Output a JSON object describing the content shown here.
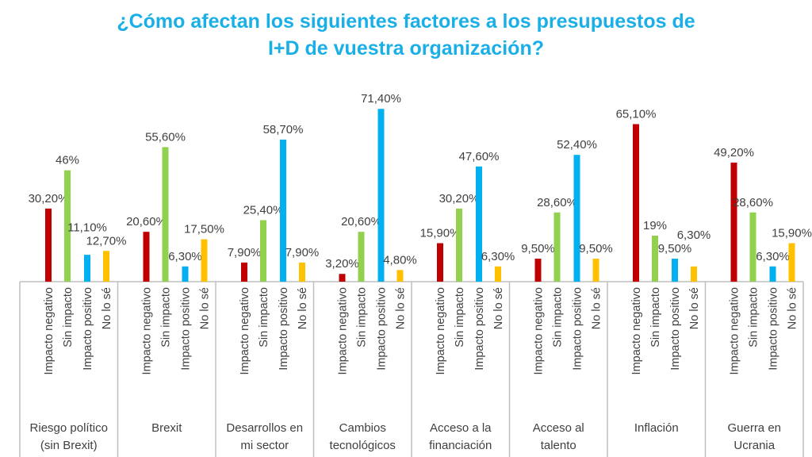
{
  "title": {
    "line1": "¿Cómo afectan los siguientes factores a los presupuestos de",
    "line2": "I+D de vuestra organización?"
  },
  "chart_data": {
    "type": "bar",
    "title": "¿Cómo afectan los siguientes factores a los presupuestos de I+D de vuestra organización?",
    "groups": [
      {
        "name": [
          "Riesgo político",
          "(sin Brexit)"
        ],
        "labels": [
          "30,20%",
          "46%",
          "11,10%",
          "12,70%"
        ],
        "values": [
          30.2,
          46,
          11.1,
          12.7
        ]
      },
      {
        "name": [
          "Brexit"
        ],
        "labels": [
          "20,60%",
          "55,60%",
          "6,30%",
          "17,50%"
        ],
        "values": [
          20.6,
          55.6,
          6.3,
          17.5
        ]
      },
      {
        "name": [
          "Desarrollos en",
          "mi sector"
        ],
        "labels": [
          "7,90%",
          "25,40%",
          "58,70%",
          "7,90%"
        ],
        "values": [
          7.9,
          25.4,
          58.7,
          7.9
        ]
      },
      {
        "name": [
          "Cambios",
          "tecnológicos"
        ],
        "labels": [
          "3,20%",
          "20,60%",
          "71,40%",
          "4,80%"
        ],
        "values": [
          3.2,
          20.6,
          71.4,
          4.8
        ]
      },
      {
        "name": [
          "Acceso a la",
          "financiación"
        ],
        "labels": [
          "15,90%",
          "30,20%",
          "47,60%",
          "6,30%"
        ],
        "values": [
          15.9,
          30.2,
          47.6,
          6.3
        ]
      },
      {
        "name": [
          "Acceso al",
          "talento"
        ],
        "labels": [
          "9,50%",
          "28,60%",
          "52,40%",
          "9,50%"
        ],
        "values": [
          9.5,
          28.6,
          52.4,
          9.5
        ]
      },
      {
        "name": [
          "Inflación"
        ],
        "labels": [
          "65,10%",
          "19%",
          "9,50%",
          "6,30%"
        ],
        "values": [
          65.1,
          19,
          9.5,
          6.3
        ]
      },
      {
        "name": [
          "Guerra en",
          "Ucrania"
        ],
        "labels": [
          "49,20%",
          "28,60%",
          "6,30%",
          "15,90%"
        ],
        "values": [
          49.2,
          28.6,
          6.3,
          15.9
        ]
      }
    ],
    "subcategories": [
      "Impacto negativo",
      "Sin impacto",
      "Impacto positivo",
      "No lo sé"
    ],
    "colors": [
      "#C00000",
      "#92D050",
      "#00B0F0",
      "#FFC000"
    ],
    "ylim": [
      0,
      75
    ],
    "grid": false,
    "legend": "none"
  }
}
